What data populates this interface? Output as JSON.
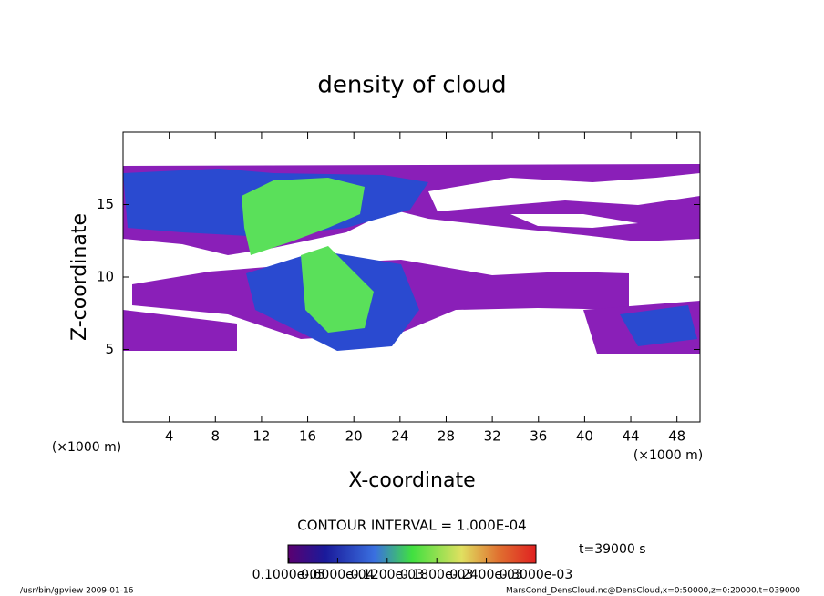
{
  "chart_data": {
    "type": "contour",
    "title": "density of cloud",
    "x_label": "X-coordinate",
    "y_label": "Z-coordinate",
    "x_unit": "(×1000 m)",
    "xlim": [
      0,
      50
    ],
    "xticks": [
      4,
      8,
      12,
      16,
      20,
      24,
      28,
      32,
      36,
      40,
      44,
      48
    ],
    "ylim": [
      0,
      20
    ],
    "yticks": [
      5,
      10,
      15
    ],
    "contour_interval": "CONTOUR INTERVAL = 1.000E-04",
    "time_label": "t=39000 s",
    "clim": [
      0,
      0.0003
    ],
    "colorbar_ticks": [
      {
        "value": 1e-06,
        "label": "0.1000e-05"
      },
      {
        "value": 6e-05,
        "label": "0.6000e-04"
      },
      {
        "value": 0.00012,
        "label": "0.1200e-03"
      },
      {
        "value": 0.00018,
        "label": "0.1800e-03"
      },
      {
        "value": 0.00024,
        "label": "0.2400e-03"
      },
      {
        "value": 0.0003,
        "label": "0.3000e-03"
      }
    ],
    "footer_left": "/usr/bin/gpview  2009-01-16",
    "footer_right": "MarsCond_DensCloud.nc@DensCloud,x=0:50000,z=0:20000,t=039000"
  }
}
